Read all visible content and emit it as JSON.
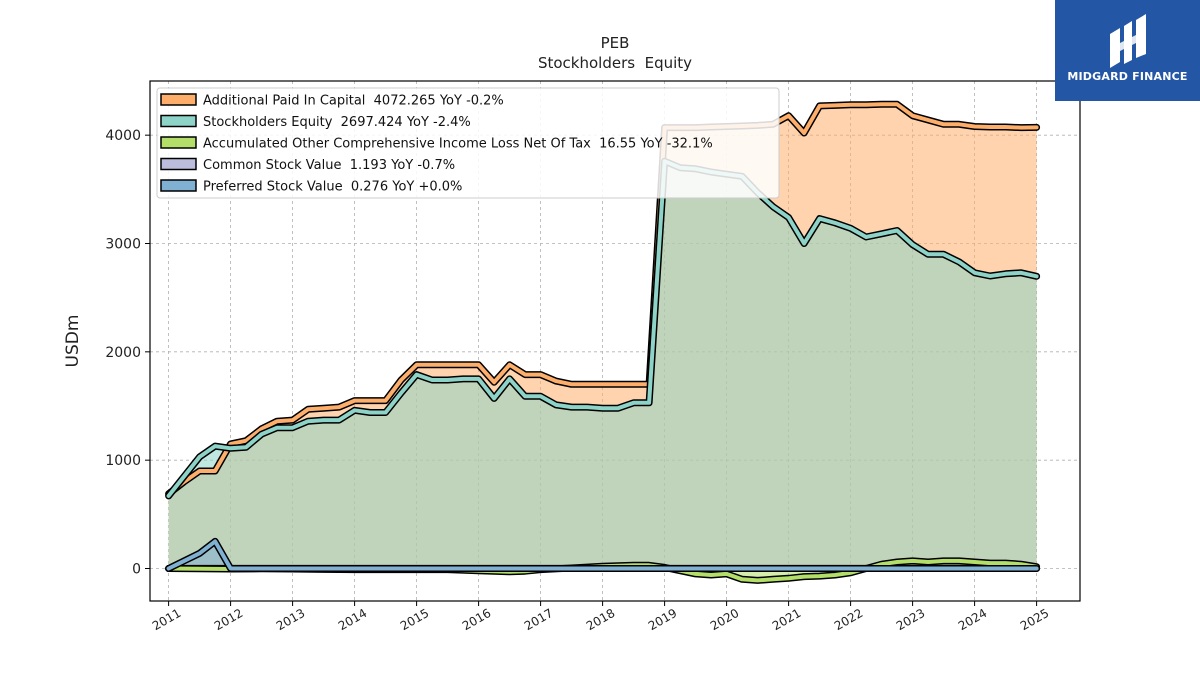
{
  "chart_data": {
    "type": "line",
    "title": "PEB",
    "subtitle": "Stockholders  Equity",
    "ylabel": "USDm",
    "xlim": [
      2010.7,
      2025.7
    ],
    "ylim": [
      -300,
      4500
    ],
    "yticks": [
      0,
      1000,
      2000,
      3000,
      4000
    ],
    "xticks": [
      "2011",
      "2012",
      "2013",
      "2014",
      "2015",
      "2016",
      "2017",
      "2018",
      "2019",
      "2020",
      "2021",
      "2022",
      "2023",
      "2024",
      "2025"
    ],
    "grid": true,
    "legend_position": "top-left",
    "series": [
      {
        "name": "Additional Paid In Capital  4072.265 YoY -0.2%",
        "color": "#fdae6b",
        "x": [
          2011.0,
          2011.25,
          2011.5,
          2011.75,
          2012.0,
          2012.25,
          2012.5,
          2012.75,
          2013.0,
          2013.25,
          2013.5,
          2013.75,
          2014.0,
          2014.25,
          2014.5,
          2014.75,
          2015.0,
          2015.25,
          2015.5,
          2015.75,
          2016.0,
          2016.25,
          2016.5,
          2016.75,
          2017.0,
          2017.25,
          2017.5,
          2017.75,
          2018.0,
          2018.25,
          2018.5,
          2018.75,
          2019.0,
          2019.25,
          2019.5,
          2019.75,
          2020.0,
          2020.25,
          2020.5,
          2020.75,
          2021.0,
          2021.25,
          2021.5,
          2021.75,
          2022.0,
          2022.25,
          2022.5,
          2022.75,
          2023.0,
          2023.25,
          2023.5,
          2023.75,
          2024.0,
          2024.25,
          2024.5,
          2024.75,
          2025.0
        ],
        "values": [
          690,
          800,
          900,
          900,
          1150,
          1180,
          1290,
          1360,
          1370,
          1470,
          1480,
          1490,
          1550,
          1550,
          1550,
          1740,
          1880,
          1880,
          1880,
          1880,
          1880,
          1720,
          1880,
          1790,
          1790,
          1730,
          1700,
          1700,
          1700,
          1700,
          1700,
          1700,
          4070,
          4070,
          4070,
          4075,
          4080,
          4085,
          4090,
          4100,
          4180,
          4020,
          4270,
          4275,
          4280,
          4280,
          4285,
          4285,
          4180,
          4140,
          4100,
          4100,
          4080,
          4075,
          4075,
          4070,
          4072
        ]
      },
      {
        "name": "Stockholders Equity  2697.424 YoY -2.4%",
        "color": "#8dd3c7",
        "x": [
          2011.0,
          2011.25,
          2011.5,
          2011.75,
          2012.0,
          2012.25,
          2012.5,
          2012.75,
          2013.0,
          2013.25,
          2013.5,
          2013.75,
          2014.0,
          2014.25,
          2014.5,
          2014.75,
          2015.0,
          2015.25,
          2015.5,
          2015.75,
          2016.0,
          2016.25,
          2016.5,
          2016.75,
          2017.0,
          2017.25,
          2017.5,
          2017.75,
          2018.0,
          2018.25,
          2018.5,
          2018.75,
          2019.0,
          2019.25,
          2019.5,
          2019.75,
          2020.0,
          2020.25,
          2020.5,
          2020.75,
          2021.0,
          2021.25,
          2021.5,
          2021.75,
          2022.0,
          2022.25,
          2022.5,
          2022.75,
          2023.0,
          2023.25,
          2023.5,
          2023.75,
          2024.0,
          2024.25,
          2024.5,
          2024.75,
          2025.0
        ],
        "values": [
          670,
          850,
          1030,
          1130,
          1110,
          1120,
          1240,
          1300,
          1300,
          1360,
          1370,
          1370,
          1460,
          1440,
          1440,
          1620,
          1790,
          1740,
          1740,
          1750,
          1750,
          1570,
          1750,
          1590,
          1590,
          1510,
          1490,
          1490,
          1480,
          1480,
          1530,
          1530,
          3760,
          3700,
          3690,
          3660,
          3640,
          3620,
          3470,
          3340,
          3240,
          3000,
          3230,
          3190,
          3140,
          3060,
          3090,
          3120,
          2990,
          2900,
          2900,
          2830,
          2730,
          2700,
          2720,
          2730,
          2697
        ]
      },
      {
        "name": "Accumulated Other Comprehensive Income Loss Net Of Tax  16.55 YoY -32.1%",
        "color": "#b3de69",
        "x": [
          2011.0,
          2011.5,
          2012.0,
          2012.5,
          2013.0,
          2013.5,
          2014.0,
          2014.5,
          2015.0,
          2015.5,
          2016.0,
          2016.25,
          2016.5,
          2016.75,
          2017.0,
          2017.5,
          2018.0,
          2018.5,
          2018.75,
          2019.0,
          2019.25,
          2019.5,
          2019.75,
          2020.0,
          2020.25,
          2020.5,
          2020.75,
          2021.0,
          2021.25,
          2021.5,
          2021.75,
          2022.0,
          2022.25,
          2022.5,
          2022.75,
          2023.0,
          2023.25,
          2023.5,
          2023.75,
          2024.0,
          2024.25,
          2024.5,
          2024.75,
          2025.0
        ],
        "values": [
          0,
          -2,
          -5,
          -3,
          -5,
          -8,
          -10,
          -10,
          -10,
          -10,
          -20,
          -25,
          -30,
          -25,
          -10,
          5,
          20,
          30,
          30,
          10,
          -20,
          -50,
          -60,
          -50,
          -100,
          -110,
          -100,
          -90,
          -75,
          -70,
          -60,
          -40,
          0,
          40,
          60,
          70,
          60,
          70,
          70,
          60,
          50,
          50,
          40,
          17
        ]
      },
      {
        "name": "Common Stock Value  1.193 YoY -0.7%",
        "color": "#bcbddc",
        "x": [
          2011.0,
          2011.25,
          2011.5,
          2011.75,
          2012.0,
          2013.0,
          2014.0,
          2015.0,
          2016.0,
          2017.0,
          2018.0,
          2019.0,
          2020.0,
          2021.0,
          2022.0,
          2023.0,
          2024.0,
          2025.0
        ],
        "values": [
          0.4,
          0.6,
          0.8,
          0.9,
          0.9,
          0.9,
          0.9,
          1.0,
          1.0,
          1.0,
          1.0,
          1.3,
          1.3,
          1.3,
          1.2,
          1.2,
          1.2,
          1.193
        ]
      },
      {
        "name": "Preferred Stock Value  0.276 YoY +0.0%",
        "color": "#80b1d3",
        "x": [
          2011.0,
          2011.25,
          2011.5,
          2011.75,
          2012.0,
          2013.0,
          2014.0,
          2015.0,
          2016.0,
          2017.0,
          2018.0,
          2019.0,
          2020.0,
          2021.0,
          2022.0,
          2023.0,
          2024.0,
          2025.0
        ],
        "values": [
          0,
          70,
          140,
          250,
          0.276,
          0.276,
          0.276,
          0.276,
          0.276,
          0.276,
          0.276,
          0.276,
          0.276,
          0.276,
          0.276,
          0.276,
          0.276,
          0.276
        ]
      }
    ]
  },
  "logo": {
    "text": "MIDGARD FINANCE",
    "background": "#2456a6"
  }
}
